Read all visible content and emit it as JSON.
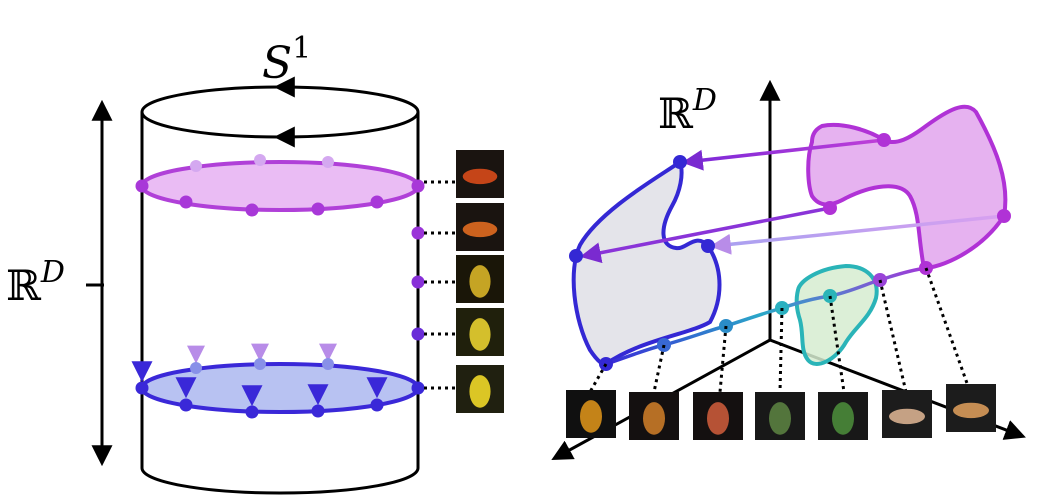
{
  "left_panel": {
    "circle_label": "S",
    "circle_label_exp": "1",
    "space_label": "ℝ",
    "space_label_exp": "D",
    "colors": {
      "top_ring": "#b040d8",
      "top_fill": "#e6b0f2",
      "bottom_ring": "#3a28d8",
      "bottom_fill": "#b8c2f2",
      "cylinder": "#000000"
    },
    "thumbnails": [
      {
        "name": "toy-duck-thumb-1",
        "fg": "#d84a1a",
        "bg": "#1a1410"
      },
      {
        "name": "toy-duck-thumb-2",
        "fg": "#e06a20",
        "bg": "#1a1410"
      },
      {
        "name": "toy-duck-thumb-3",
        "fg": "#d8b428",
        "bg": "#1a1608"
      },
      {
        "name": "toy-duck-thumb-4",
        "fg": "#e8d030",
        "bg": "#20200c"
      },
      {
        "name": "toy-duck-thumb-5",
        "fg": "#f0d828",
        "bg": "#202010"
      }
    ]
  },
  "right_panel": {
    "space_label": "ℝ",
    "space_label_exp": "D",
    "colors": {
      "purple_region": "#b032d6",
      "purple_fill": "#e6b2f0",
      "blue_region": "#3428d4",
      "blue_fill": "#e4e4ea",
      "teal_region": "#2ab4b8",
      "teal_fill": "#d6ecd0",
      "curve": "#3a7ccc"
    },
    "thumbnails": [
      {
        "name": "toy-figure-thumb-1",
        "fg": "#d8901a",
        "bg": "#101010"
      },
      {
        "name": "toy-figure-thumb-2",
        "fg": "#c87a28",
        "bg": "#141010"
      },
      {
        "name": "toy-figure-thumb-3",
        "fg": "#c85a3a",
        "bg": "#141010"
      },
      {
        "name": "toy-figure-thumb-4",
        "fg": "#5a8040",
        "bg": "#181818"
      },
      {
        "name": "toy-figure-thumb-5",
        "fg": "#4a8a3a",
        "bg": "#181818"
      },
      {
        "name": "toy-figure-thumb-6",
        "fg": "#d8b090",
        "bg": "#1c1c1c"
      },
      {
        "name": "toy-figure-thumb-7",
        "fg": "#d89a5a",
        "bg": "#1c1c1c"
      }
    ]
  }
}
